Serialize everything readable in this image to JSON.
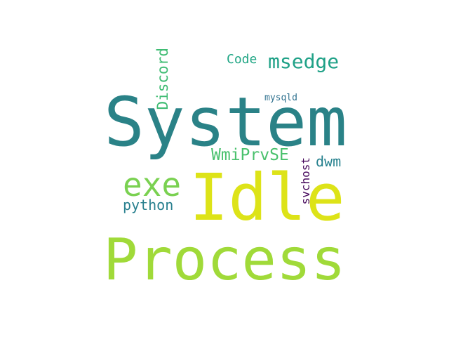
{
  "wordcloud": {
    "words": [
      {
        "id": "system",
        "text": "System",
        "color": "#2a8287"
      },
      {
        "id": "idle",
        "text": "Idle",
        "color": "#dde318"
      },
      {
        "id": "process",
        "text": "Process",
        "color": "#a0da39"
      },
      {
        "id": "exe",
        "text": "exe",
        "color": "#7ad151"
      },
      {
        "id": "msedge",
        "text": "msedge",
        "color": "#1fa187"
      },
      {
        "id": "code",
        "text": "Code",
        "color": "#21a685"
      },
      {
        "id": "discord",
        "text": "Discord",
        "color": "#3fbc73"
      },
      {
        "id": "wmiprvse",
        "text": "WmiPrvSE",
        "color": "#4ac16d"
      },
      {
        "id": "dwm",
        "text": "dwm",
        "color": "#26818e"
      },
      {
        "id": "python",
        "text": "python",
        "color": "#277f8e"
      },
      {
        "id": "svchost",
        "text": "svchost",
        "color": "#46085c"
      },
      {
        "id": "mysqld",
        "text": "mysqld",
        "color": "#2d708e"
      }
    ]
  }
}
